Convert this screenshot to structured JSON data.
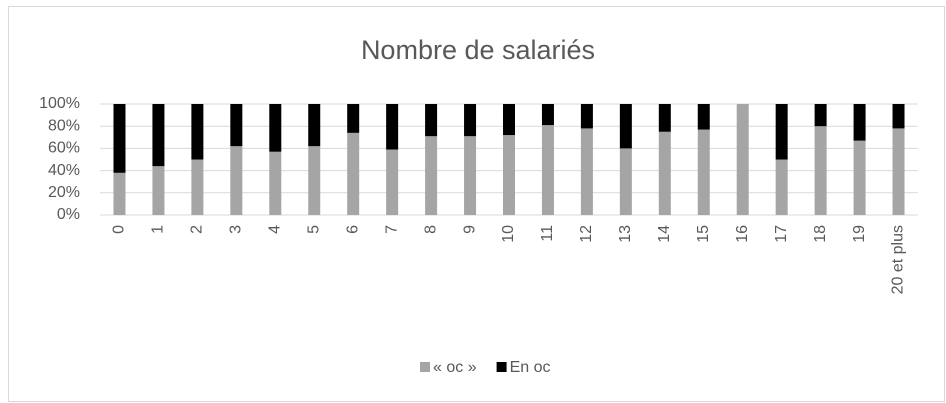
{
  "chart_data": {
    "type": "stacked_bar",
    "title": "Nombre de salariés",
    "categories": [
      "0",
      "1",
      "2",
      "3",
      "4",
      "5",
      "6",
      "7",
      "8",
      "9",
      "10",
      "11",
      "12",
      "13",
      "14",
      "15",
      "16",
      "17",
      "18",
      "19",
      "20 et plus"
    ],
    "series": [
      {
        "name": "« oc »",
        "color": "#a5a5a5",
        "values": [
          38,
          44,
          50,
          62,
          57,
          62,
          74,
          59,
          71,
          71,
          72,
          81,
          78,
          60,
          75,
          77,
          100,
          50,
          80,
          67,
          78
        ]
      },
      {
        "name": "En oc",
        "color": "#000000",
        "values": [
          62,
          56,
          50,
          38,
          43,
          38,
          26,
          41,
          29,
          29,
          28,
          19,
          22,
          40,
          25,
          23,
          0,
          50,
          20,
          33,
          22
        ]
      }
    ],
    "ylim": [
      0,
      100
    ],
    "yticks": [
      {
        "value": 0,
        "label": "0%"
      },
      {
        "value": 20,
        "label": "20%"
      },
      {
        "value": 40,
        "label": "40%"
      },
      {
        "value": 60,
        "label": "60%"
      },
      {
        "value": 80,
        "label": "80%"
      },
      {
        "value": 100,
        "label": "100%"
      }
    ],
    "grid": true,
    "legend": "bottom"
  }
}
